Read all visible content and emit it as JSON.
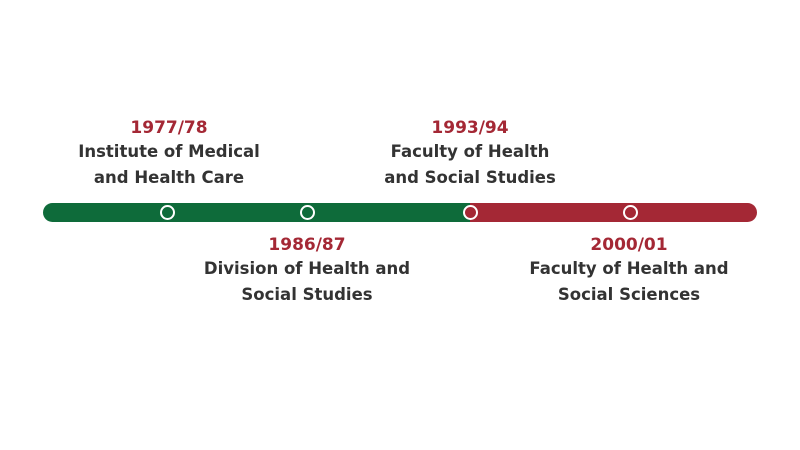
{
  "colors": {
    "green": "#0e6b3a",
    "red": "#a42835",
    "text": "#333333"
  },
  "events": [
    {
      "year": "1977/78",
      "line1": "Institute of Medical",
      "line2": "and Health Care",
      "color": "green"
    },
    {
      "year": "1986/87",
      "line1": "Division of Health and",
      "line2": "Social Studies",
      "color": "green"
    },
    {
      "year": "1993/94",
      "line1": "Faculty of Health",
      "line2": "and Social Studies",
      "color": "red"
    },
    {
      "year": "2000/01",
      "line1": "Faculty of Health and",
      "line2": "Social Sciences",
      "color": "red"
    }
  ]
}
